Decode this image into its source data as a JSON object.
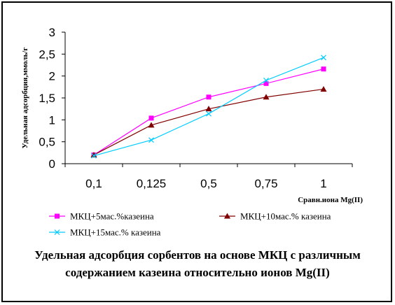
{
  "chart_data": {
    "type": "line",
    "title": "Удельная адсорбция сорбентов на основе МКЦ с различным содержанием казеина относительно ионов Mg(II)",
    "xlabel": "Сравн.иона Mg(II)",
    "ylabel": "Удельная адсорбция,ммоль/г",
    "categories": [
      "0,1",
      "0,125",
      "0,5",
      "0,75",
      "1"
    ],
    "yticks": [
      "0",
      "0,5",
      "1",
      "1,5",
      "2",
      "2,5",
      "3"
    ],
    "ylim": [
      0,
      3
    ],
    "grid": false,
    "legend_position": "bottom",
    "series": [
      {
        "name": "МКЦ+5мас.%казеина",
        "values": [
          0.2,
          1.04,
          1.52,
          1.83,
          2.16
        ],
        "color": "#ff00ff",
        "marker": "square"
      },
      {
        "name": "МКЦ+10мас.% казеина",
        "values": [
          0.2,
          0.88,
          1.25,
          1.52,
          1.7
        ],
        "color": "#800000",
        "marker": "triangle"
      },
      {
        "name": "МКЦ+15мас.% казеина",
        "values": [
          0.18,
          0.54,
          1.14,
          1.9,
          2.42
        ],
        "color": "#00ccff",
        "marker": "x"
      }
    ]
  }
}
